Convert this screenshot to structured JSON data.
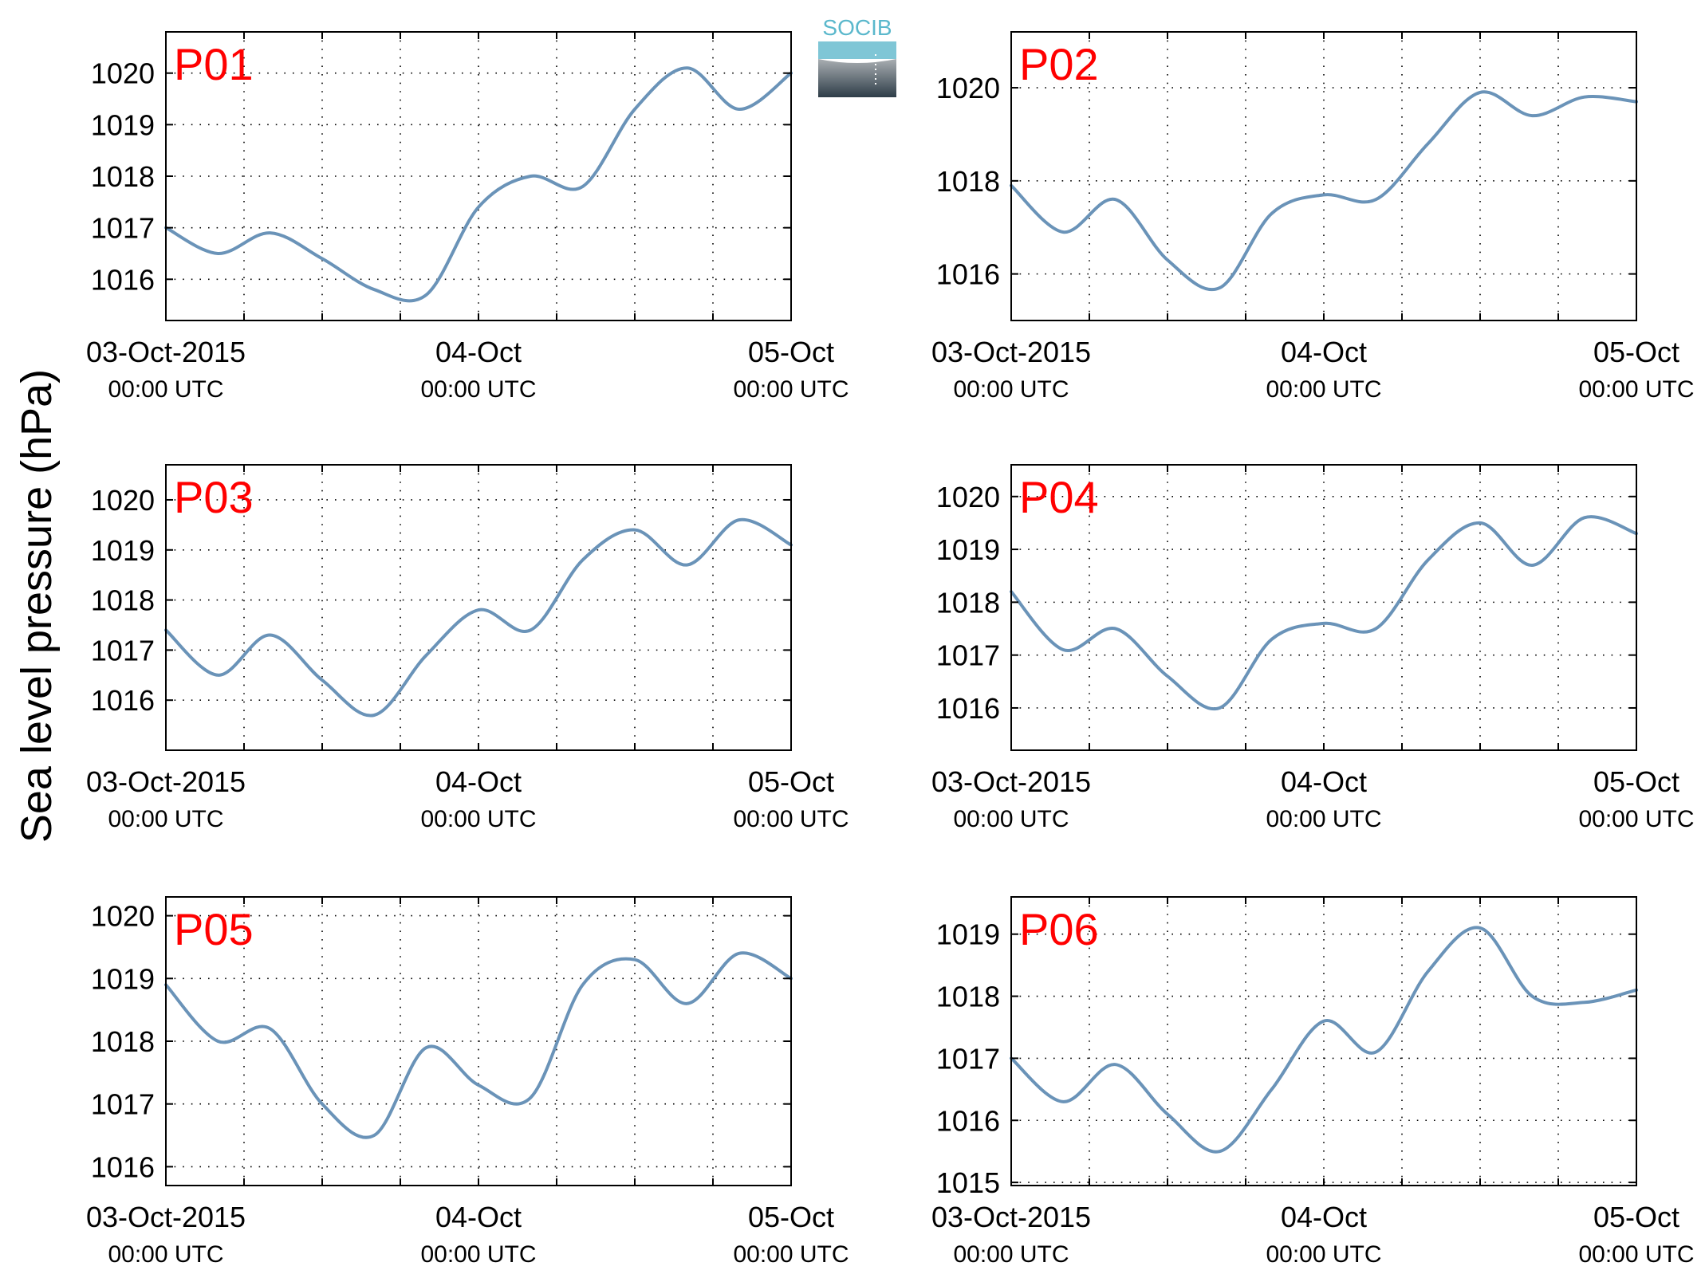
{
  "figure": {
    "ylabel": "Sea level pressure (hPa)",
    "logo": {
      "text": "SOCIB",
      "text_color": "#5bb8cc",
      "top_color": "#7fc6d6",
      "bottom_color": "#2e3d48"
    },
    "line_color": "#6a93b8",
    "label_color": "#ff0000"
  },
  "chart_data": [
    {
      "type": "line",
      "name": "P01",
      "x_start": "03-Oct-2015 00:00 UTC",
      "x_step_hours": 4,
      "xlim_hours": [
        0,
        48
      ],
      "xticks": [
        {
          "h": 0,
          "date": "03-Oct-2015",
          "time": "00:00 UTC"
        },
        {
          "h": 24,
          "date": "04-Oct",
          "time": "00:00 UTC"
        },
        {
          "h": 48,
          "date": "05-Oct",
          "time": "00:00 UTC"
        }
      ],
      "ylim": [
        1015.2,
        1020.8
      ],
      "yticks": [
        1016,
        1017,
        1018,
        1019,
        1020
      ],
      "grid": true,
      "values": [
        1017.0,
        1016.5,
        1016.9,
        1016.4,
        1015.8,
        1015.7,
        1017.4,
        1018.0,
        1017.8,
        1019.3,
        1020.1,
        1019.3,
        1020.0
      ]
    },
    {
      "type": "line",
      "name": "P02",
      "x_start": "03-Oct-2015 00:00 UTC",
      "x_step_hours": 4,
      "xlim_hours": [
        0,
        48
      ],
      "xticks": [
        {
          "h": 0,
          "date": "03-Oct-2015",
          "time": "00:00 UTC"
        },
        {
          "h": 24,
          "date": "04-Oct",
          "time": "00:00 UTC"
        },
        {
          "h": 48,
          "date": "05-Oct",
          "time": "00:00 UTC"
        }
      ],
      "ylim": [
        1015.0,
        1021.2
      ],
      "yticks": [
        1016,
        1018,
        1020
      ],
      "grid": true,
      "values": [
        1017.9,
        1016.9,
        1017.6,
        1016.3,
        1015.7,
        1017.3,
        1017.7,
        1017.6,
        1018.8,
        1019.9,
        1019.4,
        1019.8,
        1019.7
      ]
    },
    {
      "type": "line",
      "name": "P03",
      "x_start": "03-Oct-2015 00:00 UTC",
      "x_step_hours": 4,
      "xlim_hours": [
        0,
        48
      ],
      "xticks": [
        {
          "h": 0,
          "date": "03-Oct-2015",
          "time": "00:00 UTC"
        },
        {
          "h": 24,
          "date": "04-Oct",
          "time": "00:00 UTC"
        },
        {
          "h": 48,
          "date": "05-Oct",
          "time": "00:00 UTC"
        }
      ],
      "ylim": [
        1015.0,
        1020.7
      ],
      "yticks": [
        1016,
        1017,
        1018,
        1019,
        1020
      ],
      "grid": true,
      "values": [
        1017.4,
        1016.5,
        1017.3,
        1016.4,
        1015.7,
        1016.9,
        1017.8,
        1017.4,
        1018.8,
        1019.4,
        1018.7,
        1019.6,
        1019.1
      ]
    },
    {
      "type": "line",
      "name": "P04",
      "x_start": "03-Oct-2015 00:00 UTC",
      "x_step_hours": 4,
      "xlim_hours": [
        0,
        48
      ],
      "xticks": [
        {
          "h": 0,
          "date": "03-Oct-2015",
          "time": "00:00 UTC"
        },
        {
          "h": 24,
          "date": "04-Oct",
          "time": "00:00 UTC"
        },
        {
          "h": 48,
          "date": "05-Oct",
          "time": "00:00 UTC"
        }
      ],
      "ylim": [
        1015.2,
        1020.6
      ],
      "yticks": [
        1016,
        1017,
        1018,
        1019,
        1020
      ],
      "grid": true,
      "values": [
        1018.2,
        1017.1,
        1017.5,
        1016.6,
        1016.0,
        1017.3,
        1017.6,
        1017.5,
        1018.8,
        1019.5,
        1018.7,
        1019.6,
        1019.3
      ]
    },
    {
      "type": "line",
      "name": "P05",
      "x_start": "03-Oct-2015 00:00 UTC",
      "x_step_hours": 4,
      "xlim_hours": [
        0,
        48
      ],
      "xticks": [
        {
          "h": 0,
          "date": "03-Oct-2015",
          "time": "00:00 UTC"
        },
        {
          "h": 24,
          "date": "04-Oct",
          "time": "00:00 UTC"
        },
        {
          "h": 48,
          "date": "05-Oct",
          "time": "00:00 UTC"
        }
      ],
      "ylim": [
        1015.7,
        1020.3
      ],
      "yticks": [
        1016,
        1017,
        1018,
        1019,
        1020
      ],
      "grid": true,
      "values": [
        1018.9,
        1018.0,
        1018.2,
        1017.0,
        1016.5,
        1017.9,
        1017.3,
        1017.1,
        1018.9,
        1019.3,
        1018.6,
        1019.4,
        1019.0
      ]
    },
    {
      "type": "line",
      "name": "P06",
      "x_start": "03-Oct-2015 00:00 UTC",
      "x_step_hours": 4,
      "xlim_hours": [
        0,
        48
      ],
      "xticks": [
        {
          "h": 0,
          "date": "03-Oct-2015",
          "time": "00:00 UTC"
        },
        {
          "h": 24,
          "date": "04-Oct",
          "time": "00:00 UTC"
        },
        {
          "h": 48,
          "date": "05-Oct",
          "time": "00:00 UTC"
        }
      ],
      "ylim": [
        1014.95,
        1019.6
      ],
      "yticks": [
        1015,
        1016,
        1017,
        1018,
        1019
      ],
      "grid": true,
      "values": [
        1017.0,
        1016.3,
        1016.9,
        1016.1,
        1015.5,
        1016.5,
        1017.6,
        1017.1,
        1018.4,
        1019.1,
        1018.0,
        1017.9,
        1018.1
      ]
    }
  ]
}
